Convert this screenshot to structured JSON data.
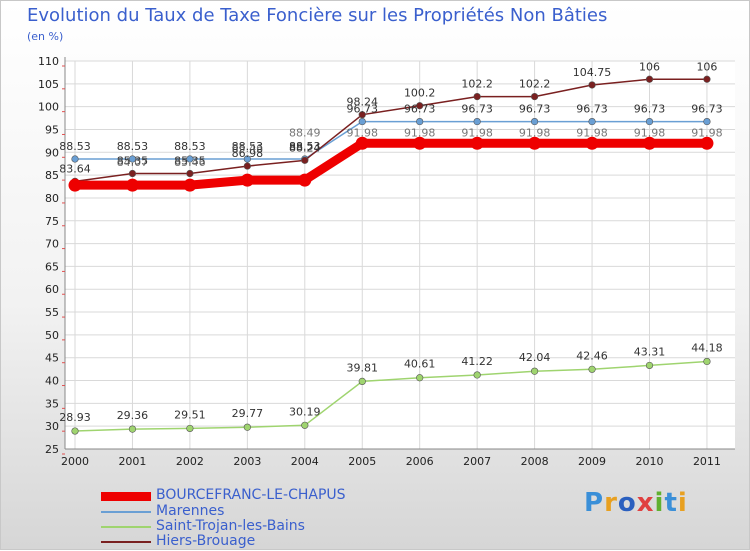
{
  "chart_data": {
    "type": "line",
    "title": "Evolution du Taux de Taxe Foncière sur les Propriétés Non Bâties",
    "unit_label": "(en %)",
    "categories": [
      "2000",
      "2001",
      "2002",
      "2003",
      "2004",
      "2005",
      "2006",
      "2007",
      "2008",
      "2009",
      "2010",
      "2011"
    ],
    "ylim": [
      25,
      110
    ],
    "yticks": [
      25,
      30,
      35,
      40,
      45,
      50,
      55,
      60,
      65,
      70,
      75,
      80,
      85,
      90,
      95,
      100,
      105,
      110
    ],
    "series": [
      {
        "name": "BOURCEFRANC-LE-CHAPUS",
        "color": "#ee0000",
        "values": [
          82.8,
          82.8,
          82.8,
          83.9,
          83.9,
          91.98,
          91.98,
          91.98,
          91.98,
          91.98,
          91.98,
          91.98
        ],
        "labels": null
      },
      {
        "name": "Marennes",
        "color": "#6a9fd4",
        "values": [
          88.53,
          88.53,
          88.53,
          88.53,
          88.53,
          96.73,
          96.73,
          96.73,
          96.73,
          96.73,
          96.73,
          96.73
        ],
        "labels": [
          "88.53",
          "88.53",
          "88.53",
          "88.53",
          "88.53",
          "96.73",
          "96.73",
          "96.73",
          "96.73",
          "96.73",
          "96.73",
          "96.73"
        ]
      },
      {
        "name": "Saint-Trojan-les-Bains",
        "color": "#9fd46f",
        "values": [
          28.93,
          29.36,
          29.51,
          29.77,
          30.19,
          39.81,
          40.61,
          41.22,
          42.04,
          42.46,
          43.31,
          44.18
        ],
        "labels": [
          "28.93",
          "29.36",
          "29.51",
          "29.77",
          "30.19",
          "39.81",
          "40.61",
          "41.22",
          "42.04",
          "42.46",
          "43.31",
          "44.18"
        ]
      },
      {
        "name": "Hiers-Brouage",
        "color": "#7a2020",
        "values": [
          83.64,
          85.35,
          85.35,
          86.98,
          88.24,
          98.24,
          100.2,
          102.2,
          102.2,
          104.75,
          106,
          106
        ],
        "labels": [
          "83.64",
          "85.35",
          "85.35",
          "86.98",
          "88.24",
          "98.24",
          "100.2",
          "102.2",
          "102.2",
          "104.75",
          "106",
          "106"
        ]
      }
    ],
    "extra_labels": [
      "84.07",
      "85.46",
      "85.46",
      "88.49",
      "91.98",
      "91.98",
      "91.98",
      "91.98",
      "91.98",
      "91.98",
      "91.98"
    ]
  },
  "brand": "Proxiti"
}
